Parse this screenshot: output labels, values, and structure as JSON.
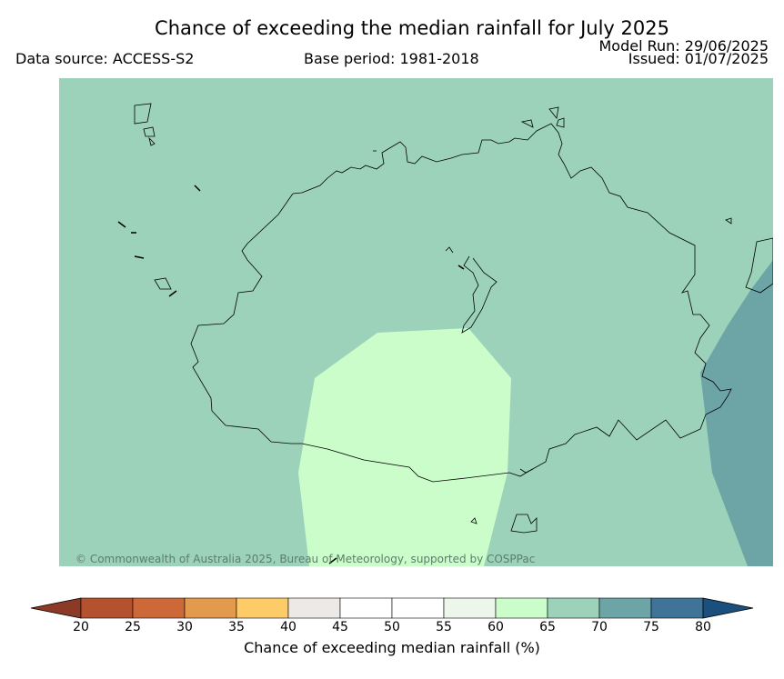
{
  "title": "Chance of exceeding the median rainfall for July 2025",
  "data_source": "Data source: ACCESS-S2",
  "base_period": "Base period: 1981-2018",
  "model_run": "Model Run: 29/06/2025",
  "issued": "Issued: 01/07/2025",
  "copyright": "© Commonwealth of Australia 2025, Bureau of Meteorology, supported by COSPPac",
  "map": {
    "background_category": "65-70",
    "regions": [
      {
        "name": "south-central",
        "category": "60-65"
      },
      {
        "name": "east-coast",
        "category": "70-75"
      }
    ]
  },
  "colorbar": {
    "label": "Chance of exceeding median rainfall (%)",
    "ticks": [
      "20",
      "25",
      "30",
      "35",
      "40",
      "45",
      "50",
      "55",
      "60",
      "65",
      "70",
      "75",
      "80"
    ],
    "under_color": "#8c3a26",
    "over_color": "#1a4f7e",
    "colors": [
      "#b4512f",
      "#cd6939",
      "#e39a4c",
      "#fdcc68",
      "#ede9e6",
      "#ffffff",
      "#ffffff",
      "#edf6ea",
      "#cbfdcb",
      "#9cd2ba",
      "#6da5a7",
      "#3f7397"
    ]
  }
}
